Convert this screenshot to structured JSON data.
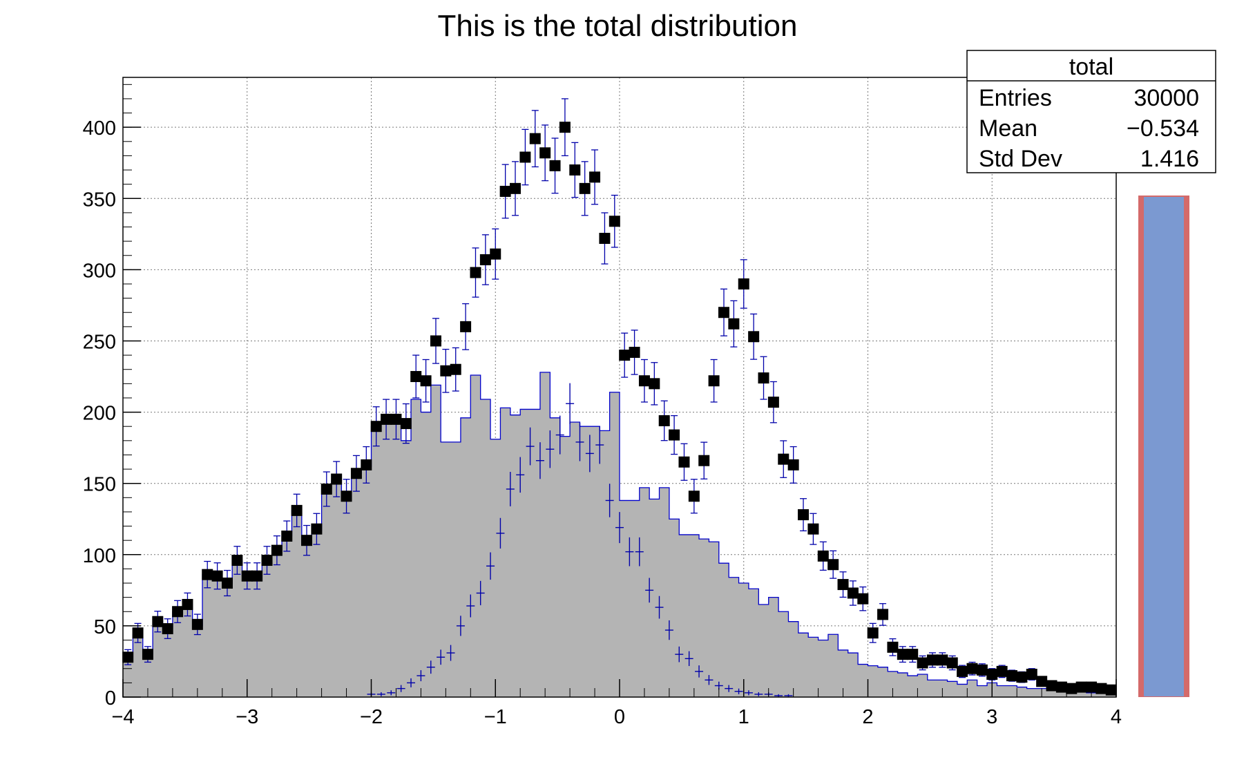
{
  "chart_data": {
    "type": "histogram",
    "title": "This is the total distribution",
    "xlabel": "",
    "ylabel": "",
    "xlim": [
      -4,
      4
    ],
    "ylim": [
      0,
      435
    ],
    "x_ticks": [
      -4,
      -3,
      -2,
      -1,
      0,
      1,
      2,
      3,
      4
    ],
    "x_tick_labels": [
      "−4",
      "−3",
      "−2",
      "−1",
      "0",
      "1",
      "2",
      "3",
      "4"
    ],
    "y_ticks": [
      0,
      50,
      100,
      150,
      200,
      250,
      300,
      350,
      400
    ],
    "y_tick_labels": [
      "0",
      "50",
      "100",
      "150",
      "200",
      "250",
      "300",
      "350",
      "400"
    ],
    "grid": true,
    "bins": 100,
    "bin_width": 0.08,
    "stats_box": {
      "name": "total",
      "rows": [
        {
          "label": "Entries",
          "value": "30000"
        },
        {
          "label": "Mean",
          "value": "−0.534"
        },
        {
          "label": "Std Dev",
          "value": "1.416"
        }
      ]
    },
    "series": [
      {
        "style": "filled-step",
        "color": "#b4b4b4",
        "line_color": "#0000cc",
        "values": [
          28,
          44,
          30,
          53,
          48,
          60,
          65,
          50,
          86,
          85,
          80,
          96,
          85,
          85,
          96,
          102,
          113,
          131,
          108,
          117,
          146,
          152,
          140,
          157,
          162,
          190,
          195,
          195,
          180,
          209,
          200,
          219,
          179,
          179,
          196,
          226,
          209,
          181,
          203,
          198,
          202,
          202,
          228,
          196,
          183,
          193,
          190,
          190,
          187,
          214,
          138,
          138,
          147,
          139,
          147,
          125,
          114,
          114,
          111,
          109,
          94,
          84,
          80,
          76,
          65,
          70,
          60,
          53,
          45,
          42,
          40,
          44,
          33,
          31,
          23,
          22,
          21,
          18,
          17,
          15,
          16,
          12,
          12,
          11,
          9,
          12,
          8,
          10,
          8,
          8,
          7,
          6,
          6,
          7,
          5,
          4,
          4,
          3,
          4,
          3
        ]
      },
      {
        "style": "markers-cross",
        "color": "#0000aa",
        "x_start": -2.04,
        "values": [
          2,
          2,
          3,
          6,
          10,
          15,
          21,
          28,
          31,
          50,
          64,
          73,
          92,
          115,
          146,
          156,
          176,
          166,
          174,
          184,
          206,
          179,
          171,
          177,
          138,
          119,
          102,
          102,
          75,
          63,
          47,
          30,
          27,
          18,
          12,
          8,
          6,
          4,
          3,
          2,
          2,
          1,
          1
        ]
      },
      {
        "style": "markers-square",
        "color": "#000000",
        "error_color": "#0000aa",
        "values": [
          28,
          45,
          30,
          53,
          48,
          60,
          65,
          51,
          86,
          85,
          80,
          96,
          85,
          85,
          96,
          103,
          113,
          131,
          110,
          118,
          146,
          153,
          141,
          157,
          163,
          190,
          195,
          195,
          192,
          225,
          222,
          250,
          229,
          230,
          260,
          298,
          307,
          311,
          355,
          357,
          379,
          392,
          382,
          373,
          400,
          370,
          357,
          365,
          322,
          334,
          240,
          242,
          222,
          220,
          194,
          184,
          165,
          141,
          166,
          222,
          270,
          262,
          290,
          253,
          224,
          207,
          167,
          163,
          128,
          118,
          99,
          93,
          79,
          73,
          69,
          45,
          58,
          35,
          30,
          30,
          24,
          26,
          26,
          24,
          18,
          20,
          19,
          16,
          18,
          15,
          14,
          16,
          11,
          8,
          7,
          6,
          7,
          7,
          6,
          5
        ]
      }
    ],
    "palette_bar": {
      "fill": "#7b99d1",
      "edge": "#d46a6a"
    }
  }
}
